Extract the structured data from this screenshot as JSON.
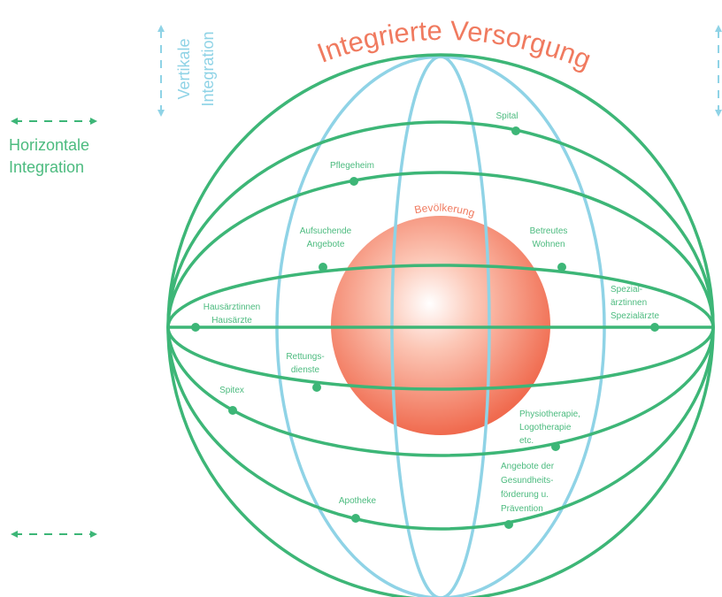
{
  "title": "Integrierte Versorgung",
  "center": "Bevölkerung",
  "vertical_axis": [
    "Vertikale",
    "Integration"
  ],
  "horizontal_axis": [
    "Horizontale",
    "Integration"
  ],
  "nodes": [
    {
      "label": [
        "Spital"
      ]
    },
    {
      "label": [
        "Pflegeheim"
      ]
    },
    {
      "label": [
        "Aufsuchende",
        "Angebote"
      ]
    },
    {
      "label": [
        "Betreutes",
        "Wohnen"
      ]
    },
    {
      "label": [
        "Hausärztinnen",
        "Hausärzte"
      ]
    },
    {
      "label": [
        "Spezial-",
        "ärztinnen",
        "Spezialärzte"
      ]
    },
    {
      "label": [
        "Rettungs-",
        "dienste"
      ]
    },
    {
      "label": [
        "Spitex"
      ]
    },
    {
      "label": [
        "Physiotherapie,",
        "Logotherapie",
        "etc."
      ]
    },
    {
      "label": [
        "Angebote der",
        "Gesundheits-",
        "förderung u.",
        "Prävention"
      ]
    },
    {
      "label": [
        "Apotheke"
      ]
    }
  ]
}
